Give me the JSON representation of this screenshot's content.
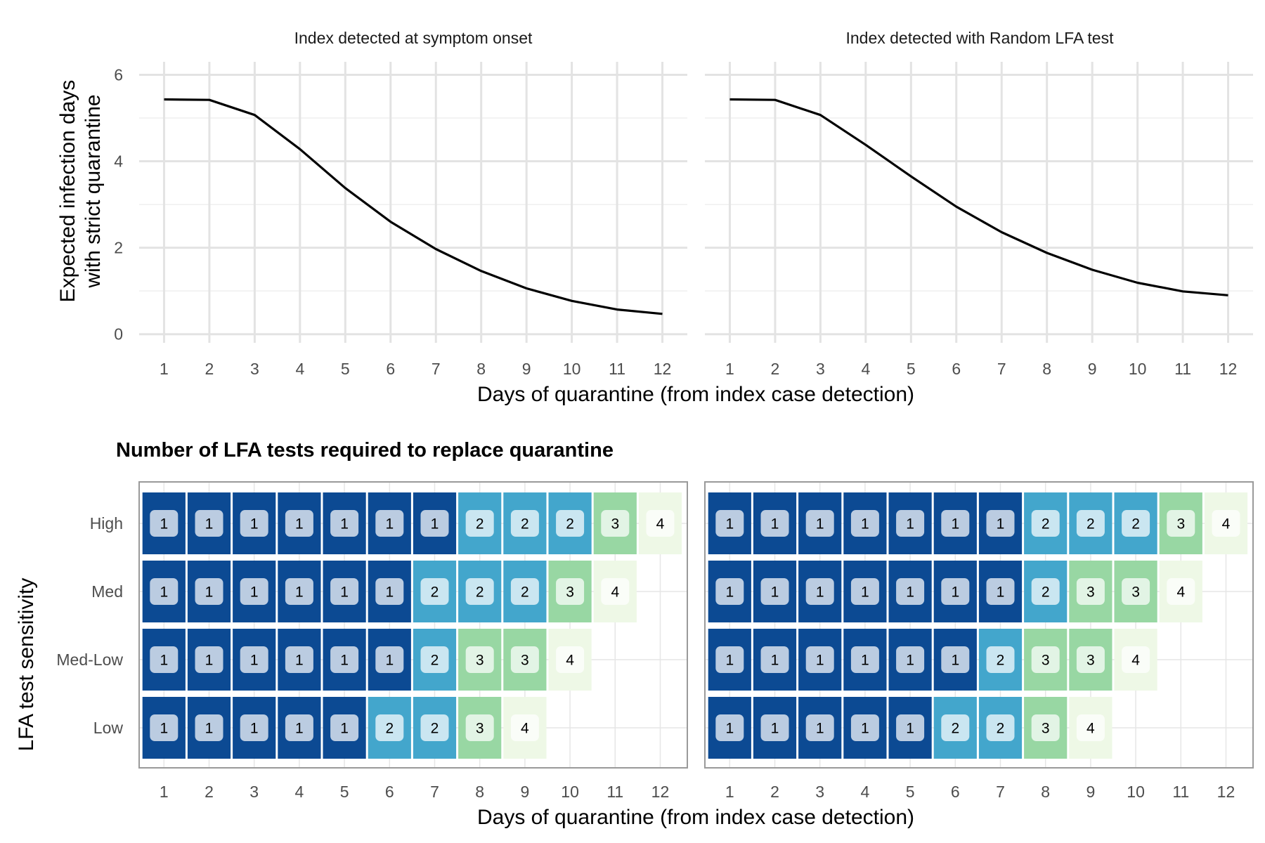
{
  "colors": {
    "line": "#000000",
    "grid_major": "#e3e3e3",
    "grid_minor": "#efefef",
    "panel_border": "#9a9a9a",
    "tests_1": "#0c4a93",
    "tests_2": "#43a6cc",
    "tests_3": "#98d7a3",
    "tests_4": "#eef8e6",
    "label_fill": "#ffffff"
  },
  "chart_data": [
    {
      "type": "line",
      "panel": "left",
      "title": "Index detected at symptom onset",
      "xlabel": "Days of quarantine (from index case detection)",
      "ylabel_lines": [
        "Expected infection days",
        "with strict quarantine"
      ],
      "x": [
        1,
        2,
        3,
        4,
        5,
        6,
        7,
        8,
        9,
        10,
        11,
        12
      ],
      "values": [
        5.43,
        5.42,
        5.07,
        4.28,
        3.38,
        2.6,
        1.97,
        1.46,
        1.06,
        0.77,
        0.57,
        0.47
      ],
      "xlim": [
        0.45,
        12.55
      ],
      "ylim": [
        -0.2,
        6.3
      ],
      "yticks": [
        0,
        2,
        4,
        6
      ],
      "xticks": [
        1,
        2,
        3,
        4,
        5,
        6,
        7,
        8,
        9,
        10,
        11,
        12
      ],
      "grid": true
    },
    {
      "type": "line",
      "panel": "right",
      "title": "Index detected with Random LFA test",
      "xlabel": "Days of quarantine (from index case detection)",
      "x": [
        1,
        2,
        3,
        4,
        5,
        6,
        7,
        8,
        9,
        10,
        11,
        12
      ],
      "values": [
        5.43,
        5.42,
        5.07,
        4.38,
        3.65,
        2.95,
        2.36,
        1.88,
        1.49,
        1.19,
        0.99,
        0.9
      ],
      "xlim": [
        0.45,
        12.55
      ],
      "ylim": [
        -0.2,
        6.3
      ],
      "xticks": [
        1,
        2,
        3,
        4,
        5,
        6,
        7,
        8,
        9,
        10,
        11,
        12
      ],
      "grid": true
    },
    {
      "type": "heatmap",
      "panel": "left",
      "title": "Number of LFA tests required to replace quarantine",
      "xlabel": "Days of quarantine (from index case detection)",
      "ylabel": "LFA test sensitivity",
      "x": [
        1,
        2,
        3,
        4,
        5,
        6,
        7,
        8,
        9,
        10,
        11,
        12
      ],
      "rows": [
        {
          "name": "High",
          "values": [
            1,
            1,
            1,
            1,
            1,
            1,
            1,
            2,
            2,
            2,
            3,
            4
          ]
        },
        {
          "name": "Med",
          "values": [
            1,
            1,
            1,
            1,
            1,
            1,
            2,
            2,
            2,
            3,
            4
          ]
        },
        {
          "name": "Med-Low",
          "values": [
            1,
            1,
            1,
            1,
            1,
            1,
            2,
            3,
            3,
            4
          ]
        },
        {
          "name": "Low",
          "values": [
            1,
            1,
            1,
            1,
            1,
            2,
            2,
            3,
            4
          ]
        }
      ]
    },
    {
      "type": "heatmap",
      "panel": "right",
      "xlabel": "Days of quarantine (from index case detection)",
      "x": [
        1,
        2,
        3,
        4,
        5,
        6,
        7,
        8,
        9,
        10,
        11,
        12
      ],
      "rows": [
        {
          "name": "High",
          "values": [
            1,
            1,
            1,
            1,
            1,
            1,
            1,
            2,
            2,
            2,
            3,
            4
          ]
        },
        {
          "name": "Med",
          "values": [
            1,
            1,
            1,
            1,
            1,
            1,
            1,
            2,
            3,
            3,
            4
          ]
        },
        {
          "name": "Med-Low",
          "values": [
            1,
            1,
            1,
            1,
            1,
            1,
            2,
            3,
            3,
            4
          ]
        },
        {
          "name": "Low",
          "values": [
            1,
            1,
            1,
            1,
            1,
            2,
            2,
            3,
            4
          ]
        }
      ]
    }
  ]
}
